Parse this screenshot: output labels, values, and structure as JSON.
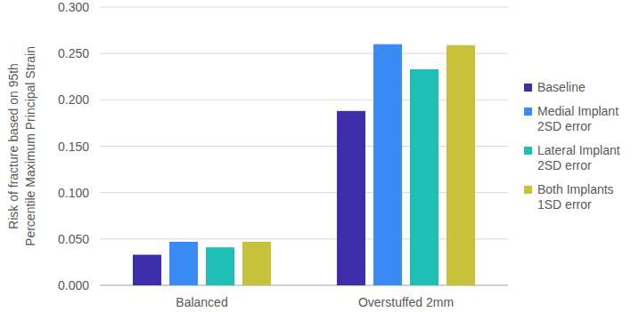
{
  "chart_data": {
    "type": "bar",
    "y_label": [
      "Risk of fracture based on 95th",
      "Percentile Maximum Principal Strain"
    ],
    "categories": [
      "Balanced",
      "Overstuffed 2mm"
    ],
    "series": [
      {
        "name": "Baseline",
        "color": "#3e2ea9",
        "values": [
          0.033,
          0.188
        ]
      },
      {
        "name": "Medial Implant 2SD error",
        "color": "#3a8bf4",
        "values": [
          0.047,
          0.26
        ]
      },
      {
        "name": "Lateral Implant 2SD error",
        "color": "#1fbfb7",
        "values": [
          0.041,
          0.233
        ]
      },
      {
        "name": "Both Implants 1SD error",
        "color": "#c8c23a",
        "values": [
          0.047,
          0.259
        ]
      }
    ],
    "ylim": [
      0,
      0.3
    ],
    "yticks": [
      {
        "value": 0,
        "label": "0.000"
      },
      {
        "value": 0.05,
        "label": "0.050"
      },
      {
        "value": 0.1,
        "label": "0.100"
      },
      {
        "value": 0.15,
        "label": "0.150"
      },
      {
        "value": 0.2,
        "label": "0.200"
      },
      {
        "value": 0.25,
        "label": "0.250"
      },
      {
        "value": 0.3,
        "label": "0.300"
      }
    ],
    "grid": true,
    "legend": "right"
  }
}
